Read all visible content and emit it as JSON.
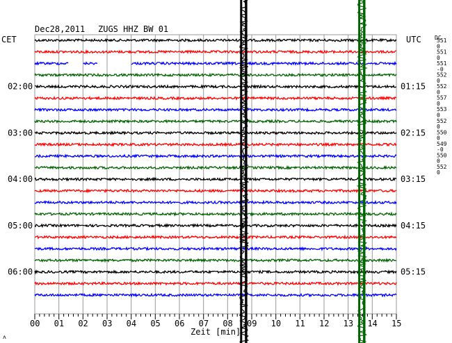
{
  "header": {
    "date": "Dec28,2011",
    "station": "ZUGS HHZ BW 01",
    "left_tz": "CET",
    "right_tz": "UTC",
    "dc_label": "DC"
  },
  "chart_data": {
    "type": "line",
    "title": "Dec28,2011  ZUGS HHZ BW 01",
    "xlabel": "Zeit [min]",
    "xlim": [
      0,
      15
    ],
    "x_ticks": [
      "00",
      "01",
      "02",
      "03",
      "04",
      "05",
      "06",
      "07",
      "08",
      "09",
      "10",
      "11",
      "12",
      "13",
      "14",
      "15"
    ],
    "grid": true,
    "trace_colors": [
      "#000000",
      "#ff0000",
      "#0000ff",
      "#006400"
    ],
    "trace_count": 23,
    "left_time_labels": [
      {
        "trace": 4,
        "text": "02:00"
      },
      {
        "trace": 8,
        "text": "03:00"
      },
      {
        "trace": 12,
        "text": "04:00"
      },
      {
        "trace": 16,
        "text": "05:00"
      },
      {
        "trace": 20,
        "text": "06:00"
      }
    ],
    "right_time_labels": [
      {
        "trace": 4,
        "text": "01:15"
      },
      {
        "trace": 8,
        "text": "02:15"
      },
      {
        "trace": 12,
        "text": "03:15"
      },
      {
        "trace": 16,
        "text": "04:15"
      },
      {
        "trace": 20,
        "text": "05:15"
      }
    ],
    "dc_values": [
      "551",
      "0",
      "551",
      "0",
      "551",
      "-0",
      "552",
      "0",
      "552",
      "0",
      "557",
      "0",
      "553",
      "0",
      "552",
      "0",
      "550",
      "0",
      "549",
      "-0",
      "550",
      "0",
      "552",
      "0"
    ],
    "events": [
      {
        "name": "black-event",
        "color": "#000000",
        "x_start": 8.5,
        "x_end": 8.85
      },
      {
        "name": "green-event",
        "color": "#006400",
        "x_start": 13.4,
        "x_end": 13.75
      }
    ],
    "gaps": [
      {
        "trace": 2,
        "x_start": 1.4,
        "x_end": 2.0
      },
      {
        "trace": 2,
        "x_start": 2.6,
        "x_end": 4.0
      }
    ]
  },
  "footer": {
    "corner_mark": "ʌ"
  }
}
